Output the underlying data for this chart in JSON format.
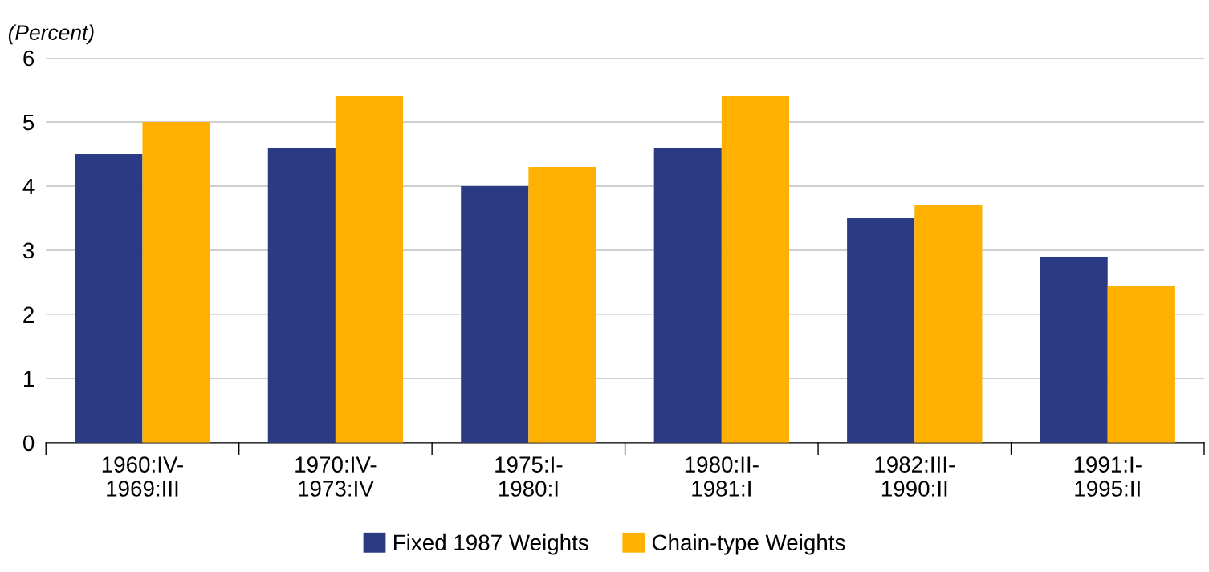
{
  "chart_data": {
    "type": "bar",
    "ylabel": "(Percent)",
    "categories": [
      "1960:IV-\n1969:III",
      "1970:IV-\n1973:IV",
      "1975:I-\n1980:I",
      "1980:II-\n1981:I",
      "1982:III-\n1990:II",
      "1991:I-\n1995:II"
    ],
    "series": [
      {
        "name": "Fixed 1987 Weights",
        "color": "#2a3a85",
        "values": [
          4.5,
          4.6,
          4.0,
          4.6,
          3.5,
          2.9
        ]
      },
      {
        "name": "Chain-type Weights",
        "color": "#ffb000",
        "values": [
          5.0,
          5.4,
          4.3,
          5.4,
          3.7,
          2.45
        ]
      }
    ],
    "ylim": [
      0,
      6
    ],
    "yticks": [
      0,
      1,
      2,
      3,
      4,
      5,
      6
    ],
    "grid": "y",
    "legend": "bottom"
  }
}
